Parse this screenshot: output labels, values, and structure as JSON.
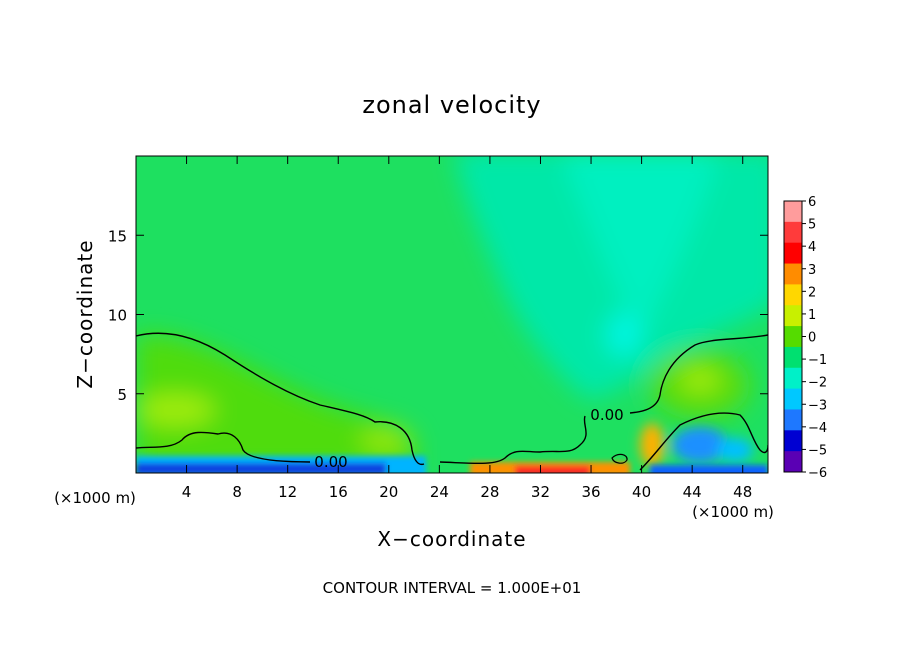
{
  "chart_data": {
    "type": "heatmap",
    "title": "zonal velocity",
    "xlabel": "X−coordinate",
    "ylabel": "Z−coordinate",
    "x_unit": "(×1000 m)",
    "y_unit": "(×1000 m)",
    "xlim": [
      0,
      50
    ],
    "ylim": [
      0,
      20
    ],
    "x_ticks": [
      4,
      8,
      12,
      16,
      20,
      24,
      28,
      32,
      36,
      40,
      44,
      48
    ],
    "x_tick_labels": [
      "4",
      "8",
      "12",
      "16",
      "20",
      "24",
      "28",
      "32",
      "36",
      "40",
      "44",
      "48"
    ],
    "y_ticks": [
      5,
      10,
      15
    ],
    "y_tick_labels": [
      "5",
      "10",
      "15"
    ],
    "colorbar": {
      "levels": [
        6,
        5,
        4,
        3,
        2,
        1,
        0,
        -1,
        -2,
        -3,
        -4,
        -5,
        -6
      ],
      "labels": [
        "6",
        "5",
        "4",
        "3",
        "2",
        "1",
        "0",
        "−1",
        "−2",
        "−3",
        "−4",
        "−5",
        "−6"
      ],
      "colors": [
        "#ff9c9c",
        "#ff3b3b",
        "#ff0000",
        "#ff8c00",
        "#ffd700",
        "#c8f000",
        "#55dc00",
        "#00e070",
        "#00f0c8",
        "#00c8ff",
        "#1e78ff",
        "#0000d2",
        "#5a00b4"
      ]
    },
    "contours": [
      {
        "label": "0.00",
        "label_x": 15.5,
        "label_z": 0.7
      },
      {
        "label": "0.00",
        "label_x": 37.0,
        "label_z": 3.8
      }
    ],
    "footer": "CONTOUR INTERVAL = 1.000E+01"
  },
  "colors": {
    "background": "#00e070",
    "upper_cyan": "#00f0c8",
    "contour_line": "#000000"
  }
}
